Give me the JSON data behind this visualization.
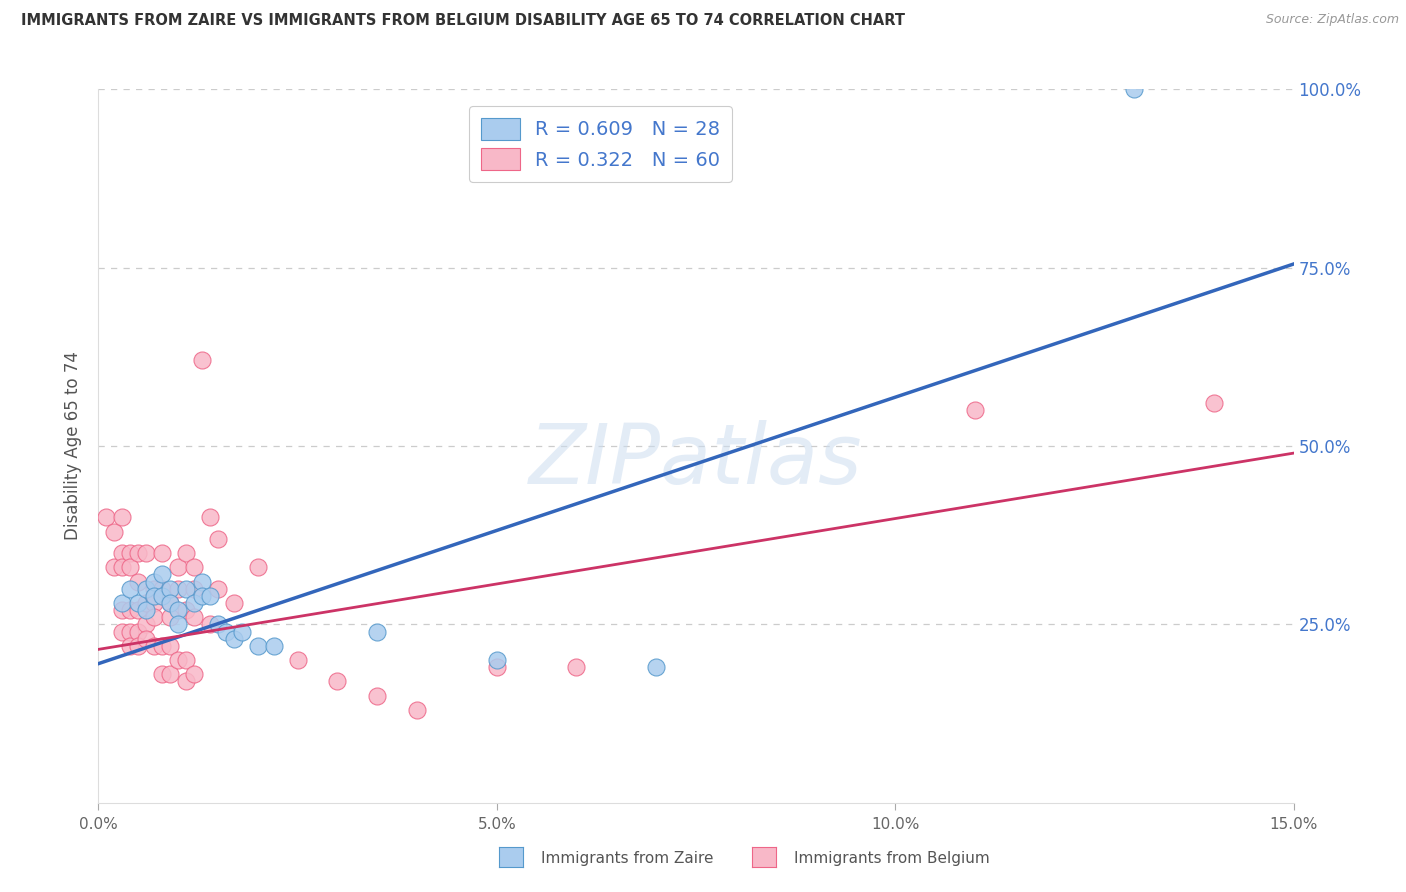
{
  "title": "IMMIGRANTS FROM ZAIRE VS IMMIGRANTS FROM BELGIUM DISABILITY AGE 65 TO 74 CORRELATION CHART",
  "source": "Source: ZipAtlas.com",
  "ylabel": "Disability Age 65 to 74",
  "xlim": [
    0.0,
    0.15
  ],
  "ylim": [
    0.0,
    1.0
  ],
  "xticks": [
    0.0,
    0.05,
    0.1,
    0.15
  ],
  "yticks": [
    0.0,
    0.25,
    0.5,
    0.75,
    1.0
  ],
  "ytick_labels_right": [
    "",
    "25.0%",
    "50.0%",
    "75.0%",
    "100.0%"
  ],
  "xtick_labels": [
    "0.0%",
    "5.0%",
    "10.0%",
    "15.0%"
  ],
  "blue_fill": "#aaccee",
  "pink_fill": "#f8b8c8",
  "blue_edge": "#5599cc",
  "pink_edge": "#ee6688",
  "blue_line": "#3366bb",
  "pink_line": "#cc3366",
  "right_label_color": "#4477cc",
  "blue_label": "Immigrants from Zaire",
  "pink_label": "Immigrants from Belgium",
  "blue_R": "0.609",
  "blue_N": "28",
  "pink_R": "0.322",
  "pink_N": "60",
  "watermark_text": "ZIPatlas",
  "watermark_color": "#ccddf0",
  "background": "#ffffff",
  "grid_color": "#cccccc",
  "blue_scatter": [
    [
      0.003,
      0.28
    ],
    [
      0.004,
      0.3
    ],
    [
      0.005,
      0.28
    ],
    [
      0.006,
      0.27
    ],
    [
      0.006,
      0.3
    ],
    [
      0.007,
      0.31
    ],
    [
      0.007,
      0.29
    ],
    [
      0.008,
      0.32
    ],
    [
      0.008,
      0.29
    ],
    [
      0.009,
      0.3
    ],
    [
      0.009,
      0.28
    ],
    [
      0.01,
      0.27
    ],
    [
      0.01,
      0.25
    ],
    [
      0.011,
      0.3
    ],
    [
      0.012,
      0.28
    ],
    [
      0.013,
      0.31
    ],
    [
      0.013,
      0.29
    ],
    [
      0.014,
      0.29
    ],
    [
      0.015,
      0.25
    ],
    [
      0.016,
      0.24
    ],
    [
      0.017,
      0.23
    ],
    [
      0.018,
      0.24
    ],
    [
      0.02,
      0.22
    ],
    [
      0.022,
      0.22
    ],
    [
      0.035,
      0.24
    ],
    [
      0.05,
      0.2
    ],
    [
      0.07,
      0.19
    ],
    [
      0.13,
      1.0
    ]
  ],
  "pink_scatter": [
    [
      0.001,
      0.4
    ],
    [
      0.002,
      0.38
    ],
    [
      0.002,
      0.33
    ],
    [
      0.003,
      0.4
    ],
    [
      0.003,
      0.35
    ],
    [
      0.003,
      0.33
    ],
    [
      0.003,
      0.27
    ],
    [
      0.003,
      0.24
    ],
    [
      0.004,
      0.35
    ],
    [
      0.004,
      0.33
    ],
    [
      0.004,
      0.27
    ],
    [
      0.004,
      0.24
    ],
    [
      0.004,
      0.22
    ],
    [
      0.005,
      0.35
    ],
    [
      0.005,
      0.31
    ],
    [
      0.005,
      0.27
    ],
    [
      0.005,
      0.24
    ],
    [
      0.005,
      0.22
    ],
    [
      0.006,
      0.35
    ],
    [
      0.006,
      0.28
    ],
    [
      0.006,
      0.25
    ],
    [
      0.006,
      0.23
    ],
    [
      0.007,
      0.3
    ],
    [
      0.007,
      0.28
    ],
    [
      0.007,
      0.26
    ],
    [
      0.007,
      0.22
    ],
    [
      0.008,
      0.35
    ],
    [
      0.008,
      0.3
    ],
    [
      0.008,
      0.22
    ],
    [
      0.008,
      0.18
    ],
    [
      0.009,
      0.28
    ],
    [
      0.009,
      0.26
    ],
    [
      0.009,
      0.22
    ],
    [
      0.009,
      0.18
    ],
    [
      0.01,
      0.33
    ],
    [
      0.01,
      0.3
    ],
    [
      0.01,
      0.2
    ],
    [
      0.011,
      0.35
    ],
    [
      0.011,
      0.27
    ],
    [
      0.011,
      0.2
    ],
    [
      0.011,
      0.17
    ],
    [
      0.012,
      0.33
    ],
    [
      0.012,
      0.3
    ],
    [
      0.012,
      0.26
    ],
    [
      0.012,
      0.18
    ],
    [
      0.013,
      0.62
    ],
    [
      0.014,
      0.4
    ],
    [
      0.014,
      0.25
    ],
    [
      0.015,
      0.37
    ],
    [
      0.015,
      0.3
    ],
    [
      0.017,
      0.28
    ],
    [
      0.02,
      0.33
    ],
    [
      0.025,
      0.2
    ],
    [
      0.03,
      0.17
    ],
    [
      0.035,
      0.15
    ],
    [
      0.04,
      0.13
    ],
    [
      0.05,
      0.19
    ],
    [
      0.06,
      0.19
    ],
    [
      0.11,
      0.55
    ],
    [
      0.14,
      0.56
    ]
  ],
  "blue_line_x": [
    0.0,
    0.15
  ],
  "blue_line_y": [
    0.195,
    0.755
  ],
  "pink_line_x": [
    0.0,
    0.15
  ],
  "pink_line_y": [
    0.215,
    0.49
  ]
}
